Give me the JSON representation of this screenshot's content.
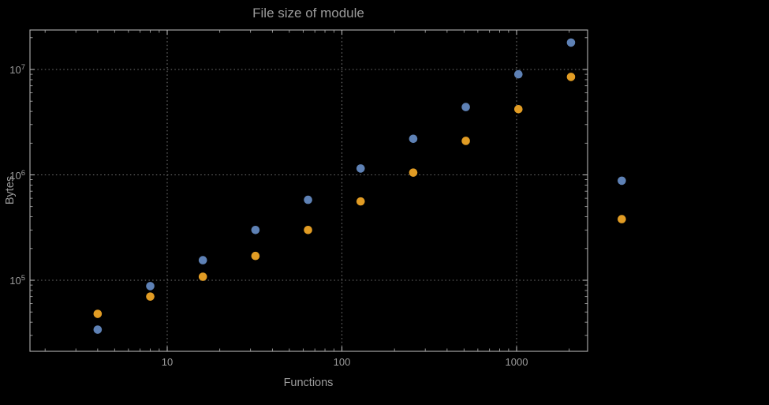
{
  "page": {
    "background": "#000000"
  },
  "colors": {
    "background": "#000000",
    "frame": "#b3b3b3",
    "grid": "#737373",
    "text": "#9c9c9c",
    "series_blue": "#5e81b5",
    "series_orange": "#e19c24"
  },
  "chart_data": {
    "type": "scatter",
    "title": "File size of module",
    "xlabel": "Functions",
    "ylabel": "Bytes",
    "x_scale": "log",
    "y_scale": "log",
    "grid": true,
    "grid_style": "dotted",
    "legend": "none",
    "xlim": [
      1.64,
      2550
    ],
    "ylim": [
      21200,
      23700000
    ],
    "x_ticks": [
      10,
      100,
      1000
    ],
    "x_tick_labels": [
      "10",
      "100",
      "1000"
    ],
    "y_ticks": [
      100000,
      1000000,
      10000000
    ],
    "y_tick_labels": [
      "10^5",
      "10^6",
      "10^7"
    ],
    "series": [
      {
        "name": "series-1-blue",
        "color": "#5e81b5",
        "points": [
          [
            4,
            34000
          ],
          [
            8,
            88000
          ],
          [
            16,
            155000
          ],
          [
            32,
            300000
          ],
          [
            64,
            580000
          ],
          [
            128,
            1150000
          ],
          [
            256,
            2200000
          ],
          [
            512,
            4400000
          ],
          [
            1024,
            9000000
          ],
          [
            2048,
            18000000
          ],
          [
            4000,
            880000
          ]
        ]
      },
      {
        "name": "series-2-orange",
        "color": "#e19c24",
        "points": [
          [
            4,
            48000
          ],
          [
            8,
            70000
          ],
          [
            16,
            108000
          ],
          [
            32,
            170000
          ],
          [
            64,
            300000
          ],
          [
            128,
            560000
          ],
          [
            256,
            1050000
          ],
          [
            512,
            2100000
          ],
          [
            1024,
            4200000
          ],
          [
            2048,
            8500000
          ],
          [
            4000,
            380000
          ]
        ]
      }
    ]
  }
}
